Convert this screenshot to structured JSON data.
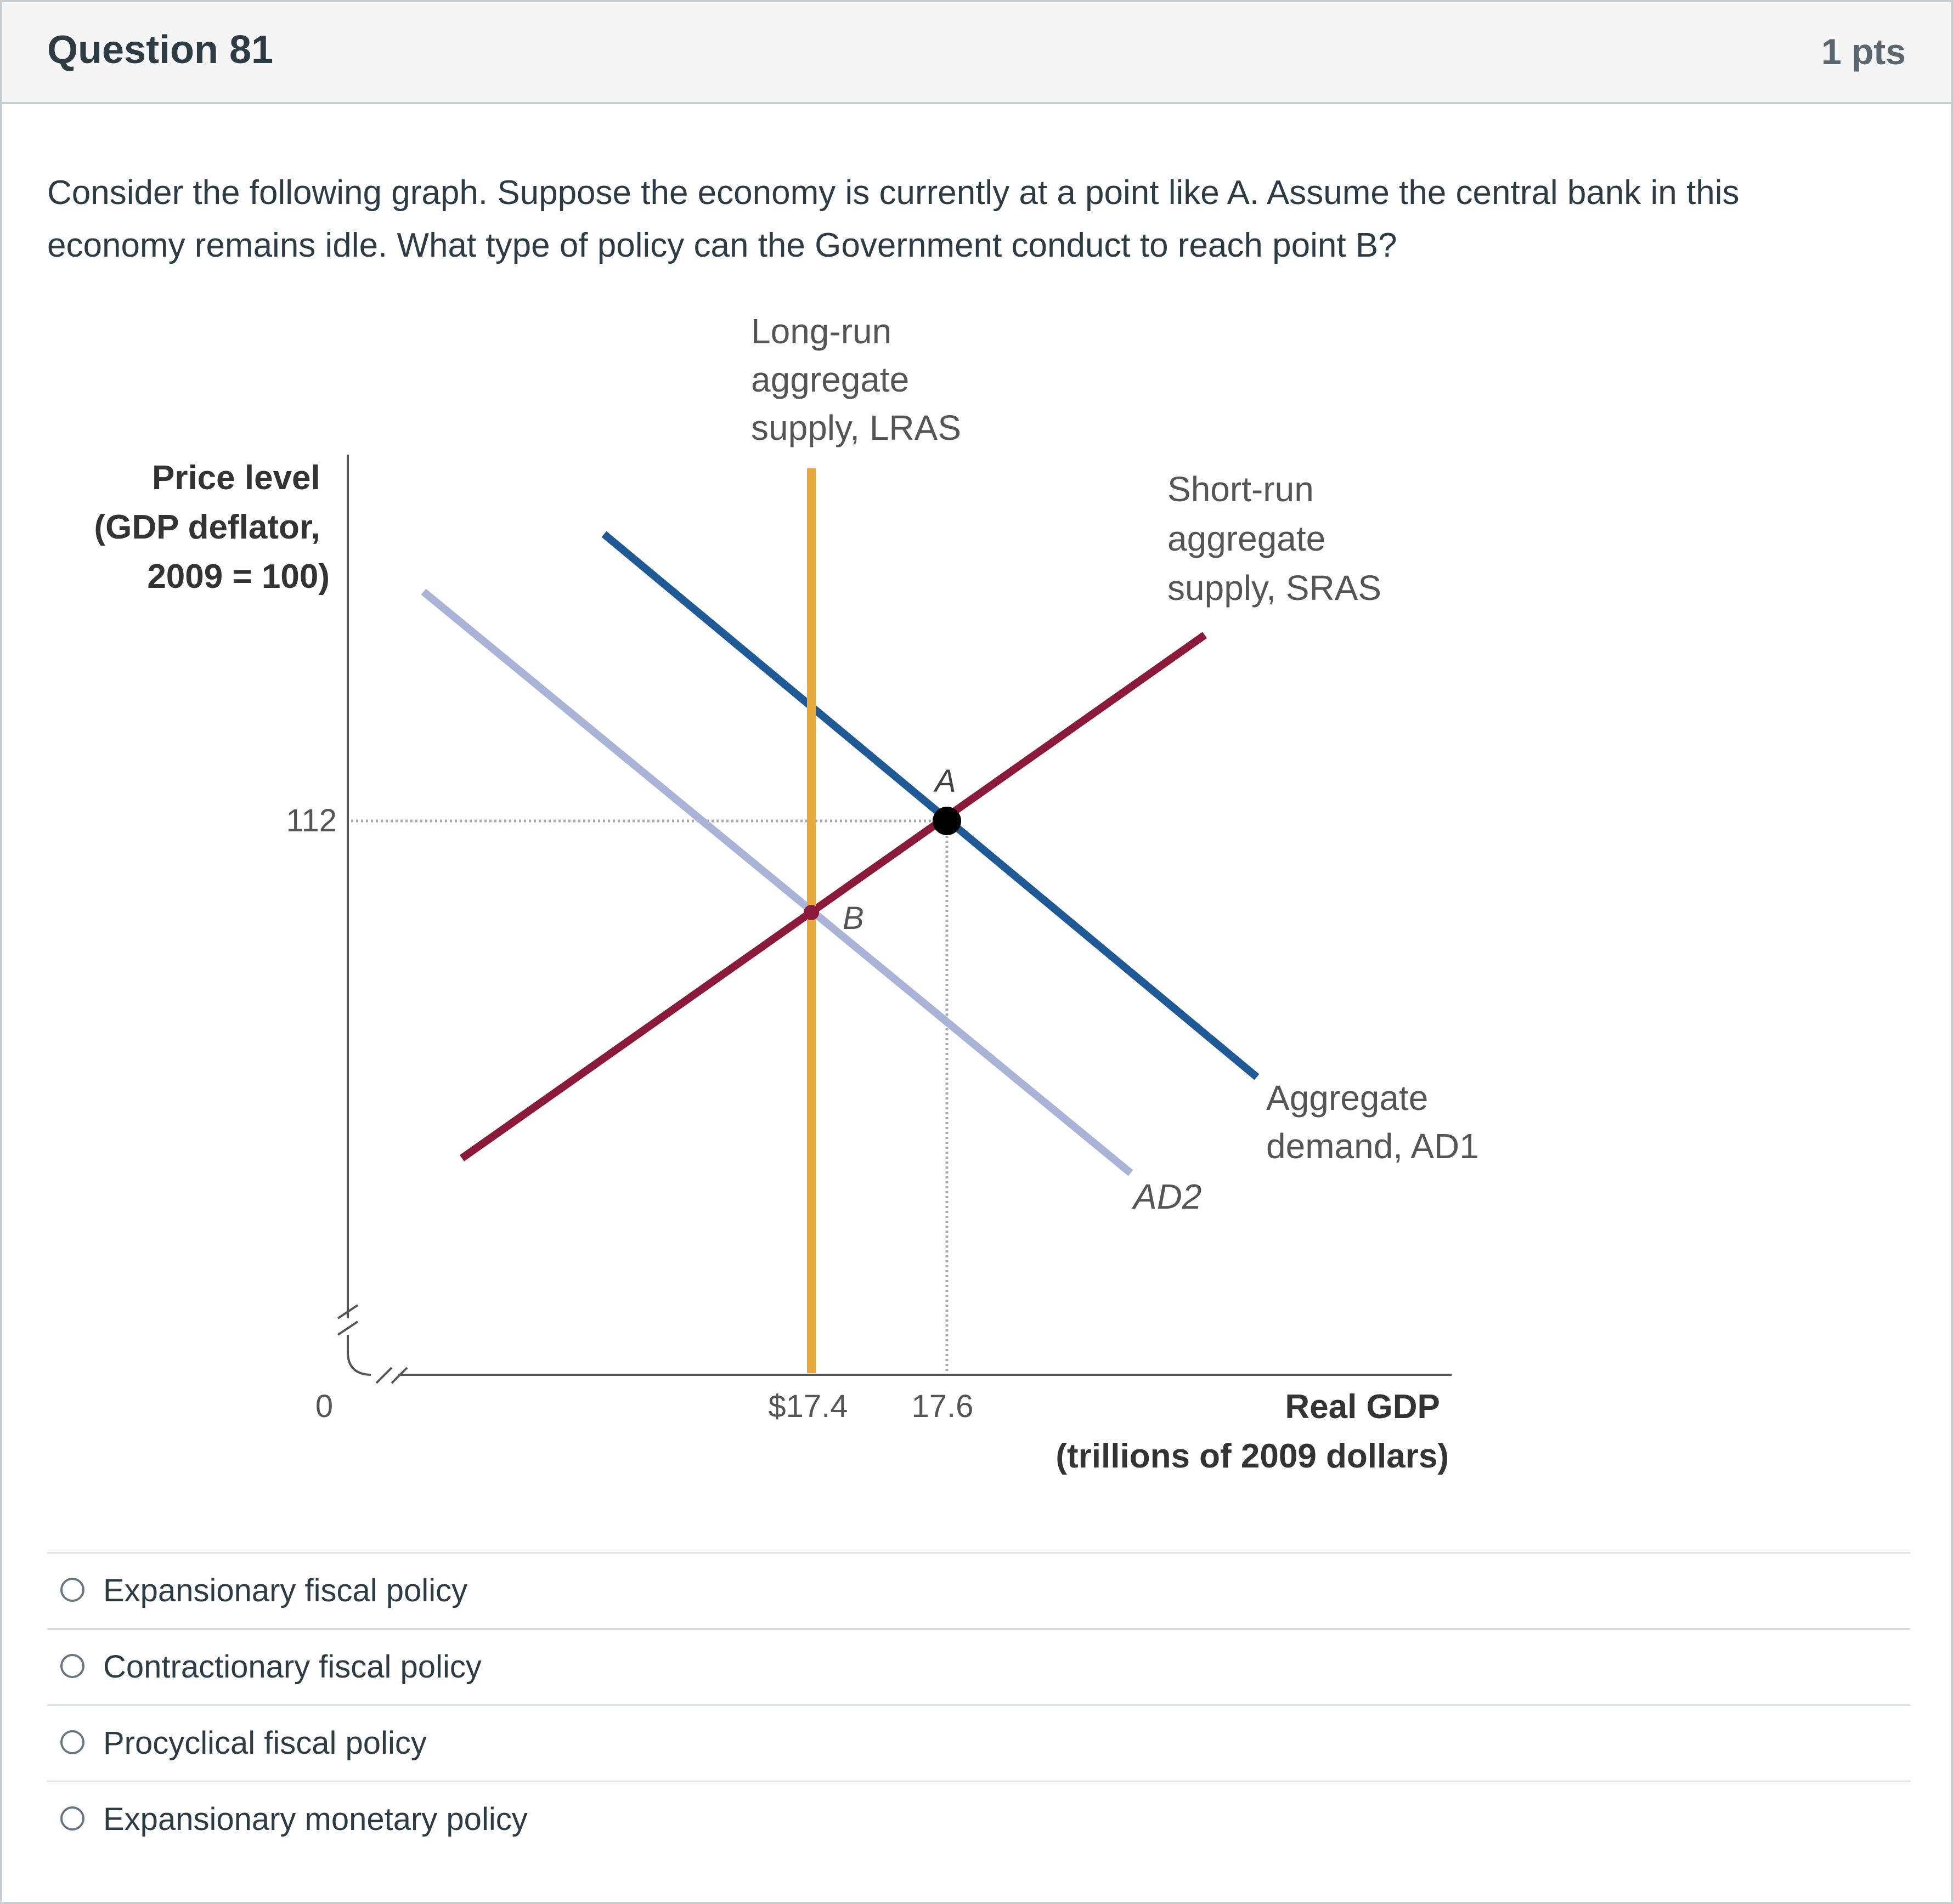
{
  "question": {
    "title": "Question 81",
    "points": "1 pts",
    "text": "Consider the following graph. Suppose the economy is currently at a point like A. Assume the central bank in this economy remains idle. What type of policy can the Government conduct to reach point B?"
  },
  "chart_data": {
    "type": "line",
    "ylabel": [
      "Price level",
      "(GDP deflator,",
      "2009 = 100)"
    ],
    "xlabel": [
      "Real GDP",
      "(trillions of 2009 dollars)"
    ],
    "origin_label": "0",
    "x_ticks": [
      "$17.4",
      "17.6"
    ],
    "y_ticks": [
      "112"
    ],
    "colors": {
      "LRAS": "#e8a93c",
      "SRAS": "#8b1a3a",
      "AD1": "#1f5a96",
      "AD2": "#a9b3d8"
    },
    "series": [
      {
        "name": "Long-run aggregate supply, LRAS",
        "label_lines": [
          "Long-run",
          "aggregate",
          "supply, LRAS"
        ],
        "x": [
          17.4,
          17.4
        ]
      },
      {
        "name": "Short-run aggregate supply, SRAS",
        "label_lines": [
          "Short-run",
          "aggregate",
          "supply, SRAS"
        ]
      },
      {
        "name": "Aggregate demand, AD1",
        "label_lines": [
          "Aggregate",
          "demand, AD1"
        ]
      },
      {
        "name": "AD2",
        "label_lines": [
          "AD2"
        ]
      }
    ],
    "points": [
      {
        "name": "A",
        "x": 17.6,
        "y": 112
      },
      {
        "name": "B",
        "x": 17.4
      }
    ]
  },
  "answers": [
    {
      "label": "Expansionary fiscal policy"
    },
    {
      "label": "Contractionary fiscal policy"
    },
    {
      "label": "Procyclical fiscal policy"
    },
    {
      "label": "Expansionary monetary policy"
    }
  ]
}
